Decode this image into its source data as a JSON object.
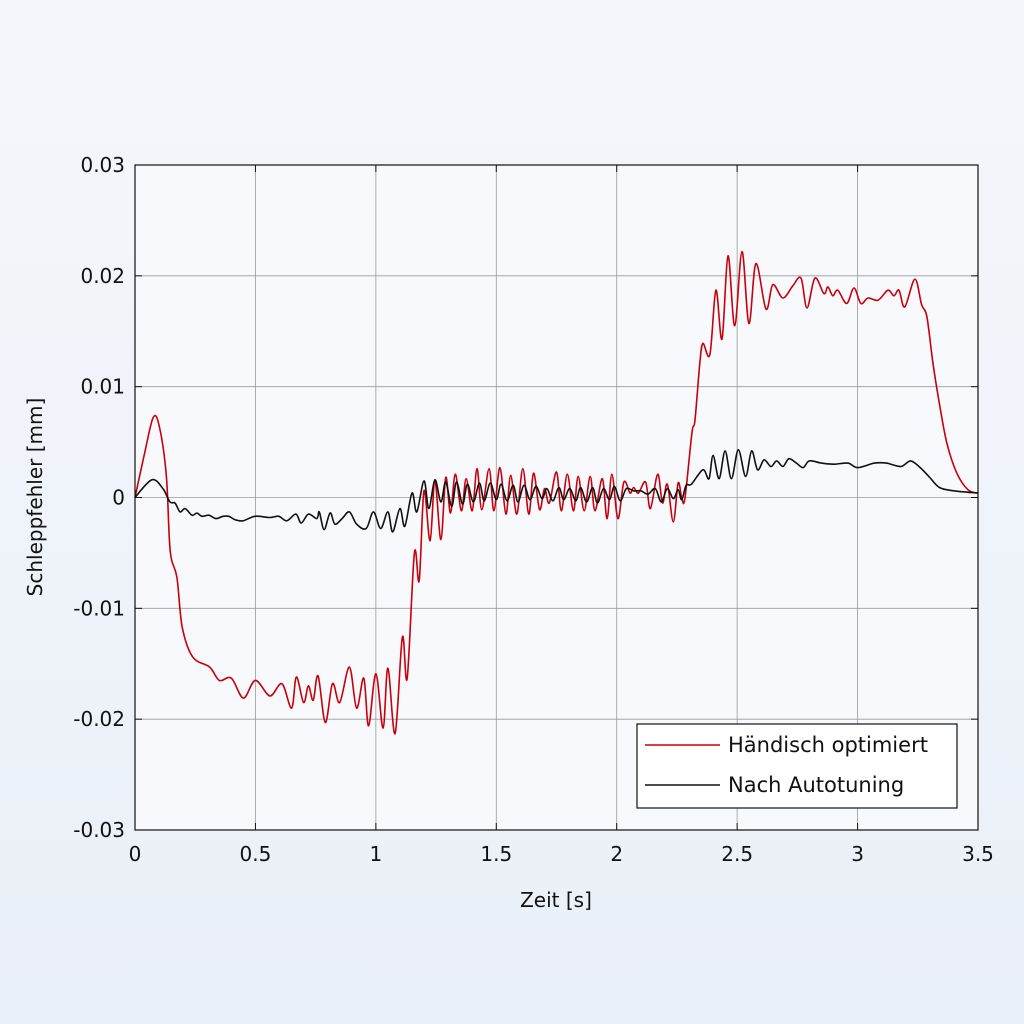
{
  "chart_data": {
    "type": "line",
    "xlabel": "Zeit [s]",
    "ylabel": "Schleppfehler [mm]",
    "xlim": [
      0,
      3.5
    ],
    "ylim": [
      -0.03,
      0.03
    ],
    "xticks": [
      0,
      0.5,
      1,
      1.5,
      2,
      2.5,
      3,
      3.5
    ],
    "xtick_labels": [
      "0",
      "0.5",
      "1",
      "1.5",
      "2",
      "2.5",
      "3",
      "3.5"
    ],
    "yticks": [
      0.03,
      0.02,
      0.01,
      0,
      -0.01,
      -0.02,
      -0.03
    ],
    "ytick_labels": [
      "0.03",
      "0.02",
      "0.01",
      "0",
      "-0.01",
      "-0.02",
      "-0.03"
    ],
    "grid": true,
    "legend_position": "bottom-right",
    "series": [
      {
        "name": "Händisch optimiert",
        "color": "#c8000a",
        "points": [
          [
            0,
            0
          ],
          [
            0.04,
            0.004
          ],
          [
            0.075,
            0.0072
          ],
          [
            0.1,
            0.0065
          ],
          [
            0.13,
            0.002
          ],
          [
            0.146,
            -0.0048
          ],
          [
            0.174,
            -0.0072
          ],
          [
            0.196,
            -0.0117
          ],
          [
            0.24,
            -0.0144
          ],
          [
            0.31,
            -0.0153
          ],
          [
            0.35,
            -0.0165
          ],
          [
            0.4,
            -0.0163
          ],
          [
            0.45,
            -0.0181
          ],
          [
            0.5,
            -0.0165
          ],
          [
            0.56,
            -0.0179
          ],
          [
            0.61,
            -0.0168
          ],
          [
            0.65,
            -0.019
          ],
          [
            0.67,
            -0.0162
          ],
          [
            0.7,
            -0.0185
          ],
          [
            0.72,
            -0.017
          ],
          [
            0.74,
            -0.0183
          ],
          [
            0.76,
            -0.0161
          ],
          [
            0.79,
            -0.0203
          ],
          [
            0.82,
            -0.0168
          ],
          [
            0.85,
            -0.0185
          ],
          [
            0.89,
            -0.0153
          ],
          [
            0.92,
            -0.019
          ],
          [
            0.95,
            -0.0163
          ],
          [
            0.97,
            -0.0206
          ],
          [
            1.0,
            -0.0159
          ],
          [
            1.03,
            -0.0208
          ],
          [
            1.05,
            -0.0154
          ],
          [
            1.08,
            -0.0213
          ],
          [
            1.11,
            -0.0126
          ],
          [
            1.13,
            -0.0163
          ],
          [
            1.16,
            -0.005
          ],
          [
            1.18,
            -0.0075
          ],
          [
            1.2,
            0.0006
          ],
          [
            1.225,
            -0.0039
          ],
          [
            1.245,
            0.0015
          ],
          [
            1.27,
            -0.0038
          ],
          [
            1.29,
            0.0018
          ],
          [
            1.31,
            -0.0014
          ],
          [
            1.33,
            0.0021
          ],
          [
            1.355,
            -0.0012
          ],
          [
            1.375,
            0.0017
          ],
          [
            1.4,
            -0.0012
          ],
          [
            1.42,
            0.0026
          ],
          [
            1.44,
            -0.0011
          ],
          [
            1.47,
            0.0026
          ],
          [
            1.49,
            -0.0012
          ],
          [
            1.515,
            0.0027
          ],
          [
            1.54,
            -0.0015
          ],
          [
            1.56,
            0.002
          ],
          [
            1.585,
            -0.0015
          ],
          [
            1.61,
            0.0026
          ],
          [
            1.635,
            -0.0015
          ],
          [
            1.655,
            0.0022
          ],
          [
            1.68,
            -0.0011
          ],
          [
            1.7,
            0.0008
          ],
          [
            1.72,
            -0.0005
          ],
          [
            1.75,
            0.0023
          ],
          [
            1.77,
            -0.0012
          ],
          [
            1.795,
            0.0021
          ],
          [
            1.82,
            -0.0012
          ],
          [
            1.84,
            0.0019
          ],
          [
            1.865,
            -0.0012
          ],
          [
            1.89,
            0.0019
          ],
          [
            1.91,
            -0.0012
          ],
          [
            1.94,
            0.0017
          ],
          [
            1.96,
            -0.0019
          ],
          [
            1.98,
            0.0021
          ],
          [
            2.005,
            -0.0019
          ],
          [
            2.03,
            0.0014
          ],
          [
            2.055,
            0.0004
          ],
          [
            2.07,
            0.0009
          ],
          [
            2.09,
            0.0004
          ],
          [
            2.12,
            0.0014
          ],
          [
            2.14,
            -0.001
          ],
          [
            2.17,
            0.0021
          ],
          [
            2.19,
            -0.0005
          ],
          [
            2.21,
            0.0012
          ],
          [
            2.235,
            -0.0022
          ],
          [
            2.255,
            0.0013
          ],
          [
            2.27,
            0.0
          ],
          [
            2.283,
            -0.0001
          ],
          [
            2.312,
            0.0058
          ],
          [
            2.325,
            0.007
          ],
          [
            2.345,
            0.0121
          ],
          [
            2.358,
            0.0139
          ],
          [
            2.387,
            0.0129
          ],
          [
            2.412,
            0.0187
          ],
          [
            2.437,
            0.0143
          ],
          [
            2.462,
            0.0218
          ],
          [
            2.49,
            0.0155
          ],
          [
            2.52,
            0.0222
          ],
          [
            2.549,
            0.0157
          ],
          [
            2.578,
            0.0211
          ],
          [
            2.62,
            0.017
          ],
          [
            2.648,
            0.0192
          ],
          [
            2.69,
            0.018
          ],
          [
            2.731,
            0.0191
          ],
          [
            2.765,
            0.0198
          ],
          [
            2.79,
            0.0171
          ],
          [
            2.823,
            0.0198
          ],
          [
            2.86,
            0.0184
          ],
          [
            2.877,
            0.019
          ],
          [
            2.897,
            0.0182
          ],
          [
            2.918,
            0.0187
          ],
          [
            2.955,
            0.0175
          ],
          [
            2.985,
            0.0189
          ],
          [
            3.014,
            0.0175
          ],
          [
            3.043,
            0.018
          ],
          [
            3.085,
            0.0178
          ],
          [
            3.126,
            0.0187
          ],
          [
            3.151,
            0.0182
          ],
          [
            3.172,
            0.0187
          ],
          [
            3.196,
            0.0172
          ],
          [
            3.238,
            0.0197
          ],
          [
            3.266,
            0.0174
          ],
          [
            3.288,
            0.0163
          ],
          [
            3.313,
            0.0121
          ],
          [
            3.342,
            0.0082
          ],
          [
            3.371,
            0.0049
          ],
          [
            3.412,
            0.0022
          ],
          [
            3.458,
            0.0007
          ],
          [
            3.5,
            0.0004
          ]
        ]
      },
      {
        "name": "Nach Autotuning",
        "color": "#111111",
        "points": [
          [
            0,
            0
          ],
          [
            0.07,
            0.0016
          ],
          [
            0.116,
            0.0008
          ],
          [
            0.145,
            -0.0004
          ],
          [
            0.166,
            -0.0005
          ],
          [
            0.187,
            -0.0013
          ],
          [
            0.208,
            -0.001
          ],
          [
            0.237,
            -0.0016
          ],
          [
            0.257,
            -0.0014
          ],
          [
            0.278,
            -0.0017
          ],
          [
            0.307,
            -0.0016
          ],
          [
            0.336,
            -0.0019
          ],
          [
            0.365,
            -0.0017
          ],
          [
            0.39,
            -0.0017
          ],
          [
            0.415,
            -0.002
          ],
          [
            0.449,
            -0.0021
          ],
          [
            0.498,
            -0.0017
          ],
          [
            0.56,
            -0.0018
          ],
          [
            0.597,
            -0.0017
          ],
          [
            0.63,
            -0.0021
          ],
          [
            0.668,
            -0.0015
          ],
          [
            0.69,
            -0.0023
          ],
          [
            0.72,
            -0.0015
          ],
          [
            0.755,
            -0.0019
          ],
          [
            0.765,
            -0.0013
          ],
          [
            0.785,
            -0.0029
          ],
          [
            0.81,
            -0.0014
          ],
          [
            0.83,
            -0.0024
          ],
          [
            0.86,
            -0.0019
          ],
          [
            0.89,
            -0.0013
          ],
          [
            0.92,
            -0.0024
          ],
          [
            0.96,
            -0.0028
          ],
          [
            0.99,
            -0.0013
          ],
          [
            1.02,
            -0.0028
          ],
          [
            1.05,
            -0.0013
          ],
          [
            1.07,
            -0.0031
          ],
          [
            1.1,
            -0.001
          ],
          [
            1.12,
            -0.0026
          ],
          [
            1.15,
            0.0004
          ],
          [
            1.17,
            -0.0013
          ],
          [
            1.2,
            0.0015
          ],
          [
            1.22,
            -0.001
          ],
          [
            1.245,
            0.0016
          ],
          [
            1.27,
            -0.0004
          ],
          [
            1.29,
            0.0014
          ],
          [
            1.315,
            -0.0008
          ],
          [
            1.335,
            0.0014
          ],
          [
            1.36,
            -0.0006
          ],
          [
            1.38,
            0.0012
          ],
          [
            1.405,
            -0.0004
          ],
          [
            1.43,
            0.0013
          ],
          [
            1.45,
            -0.0003
          ],
          [
            1.475,
            0.0013
          ],
          [
            1.5,
            -0.0002
          ],
          [
            1.52,
            0.0012
          ],
          [
            1.545,
            -0.0003
          ],
          [
            1.57,
            0.0011
          ],
          [
            1.59,
            -0.0004
          ],
          [
            1.615,
            0.0011
          ],
          [
            1.64,
            -0.0002
          ],
          [
            1.665,
            0.001
          ],
          [
            1.69,
            -0.0001
          ],
          [
            1.71,
            0.0008
          ],
          [
            1.735,
            -0.0003
          ],
          [
            1.76,
            0.0009
          ],
          [
            1.78,
            -0.0002
          ],
          [
            1.805,
            0.0008
          ],
          [
            1.83,
            -0.0003
          ],
          [
            1.85,
            0.0009
          ],
          [
            1.875,
            -0.0004
          ],
          [
            1.9,
            0.0009
          ],
          [
            1.92,
            -0.0005
          ],
          [
            1.945,
            0.0008
          ],
          [
            1.97,
            -0.0002
          ],
          [
            1.99,
            0.001
          ],
          [
            2.015,
            -0.0003
          ],
          [
            2.04,
            0.0008
          ],
          [
            2.07,
            0.0006
          ],
          [
            2.1,
            0.0006
          ],
          [
            2.13,
            0.0003
          ],
          [
            2.16,
            0.0008
          ],
          [
            2.185,
            -0.0004
          ],
          [
            2.21,
            0.0008
          ],
          [
            2.235,
            -0.0001
          ],
          [
            2.255,
            0.0007
          ],
          [
            2.27,
            -0.0002
          ],
          [
            2.288,
            0.0011
          ],
          [
            2.31,
            0.0012
          ],
          [
            2.358,
            0.0025
          ],
          [
            2.383,
            0.0017
          ],
          [
            2.4,
            0.0038
          ],
          [
            2.425,
            0.0017
          ],
          [
            2.45,
            0.0042
          ],
          [
            2.476,
            0.0017
          ],
          [
            2.505,
            0.0043
          ],
          [
            2.535,
            0.0019
          ],
          [
            2.56,
            0.0042
          ],
          [
            2.585,
            0.0025
          ],
          [
            2.612,
            0.0034
          ],
          [
            2.64,
            0.0028
          ],
          [
            2.664,
            0.0033
          ],
          [
            2.69,
            0.0028
          ],
          [
            2.715,
            0.0035
          ],
          [
            2.746,
            0.0031
          ],
          [
            2.774,
            0.0027
          ],
          [
            2.8,
            0.0033
          ],
          [
            2.85,
            0.0031
          ],
          [
            2.9,
            0.003
          ],
          [
            2.96,
            0.0031
          ],
          [
            3.0,
            0.0027
          ],
          [
            3.07,
            0.0031
          ],
          [
            3.12,
            0.0031
          ],
          [
            3.18,
            0.0028
          ],
          [
            3.22,
            0.0033
          ],
          [
            3.26,
            0.0027
          ],
          [
            3.3,
            0.0018
          ],
          [
            3.34,
            0.0009
          ],
          [
            3.4,
            0.0006
          ],
          [
            3.5,
            0.0004
          ]
        ]
      }
    ]
  }
}
